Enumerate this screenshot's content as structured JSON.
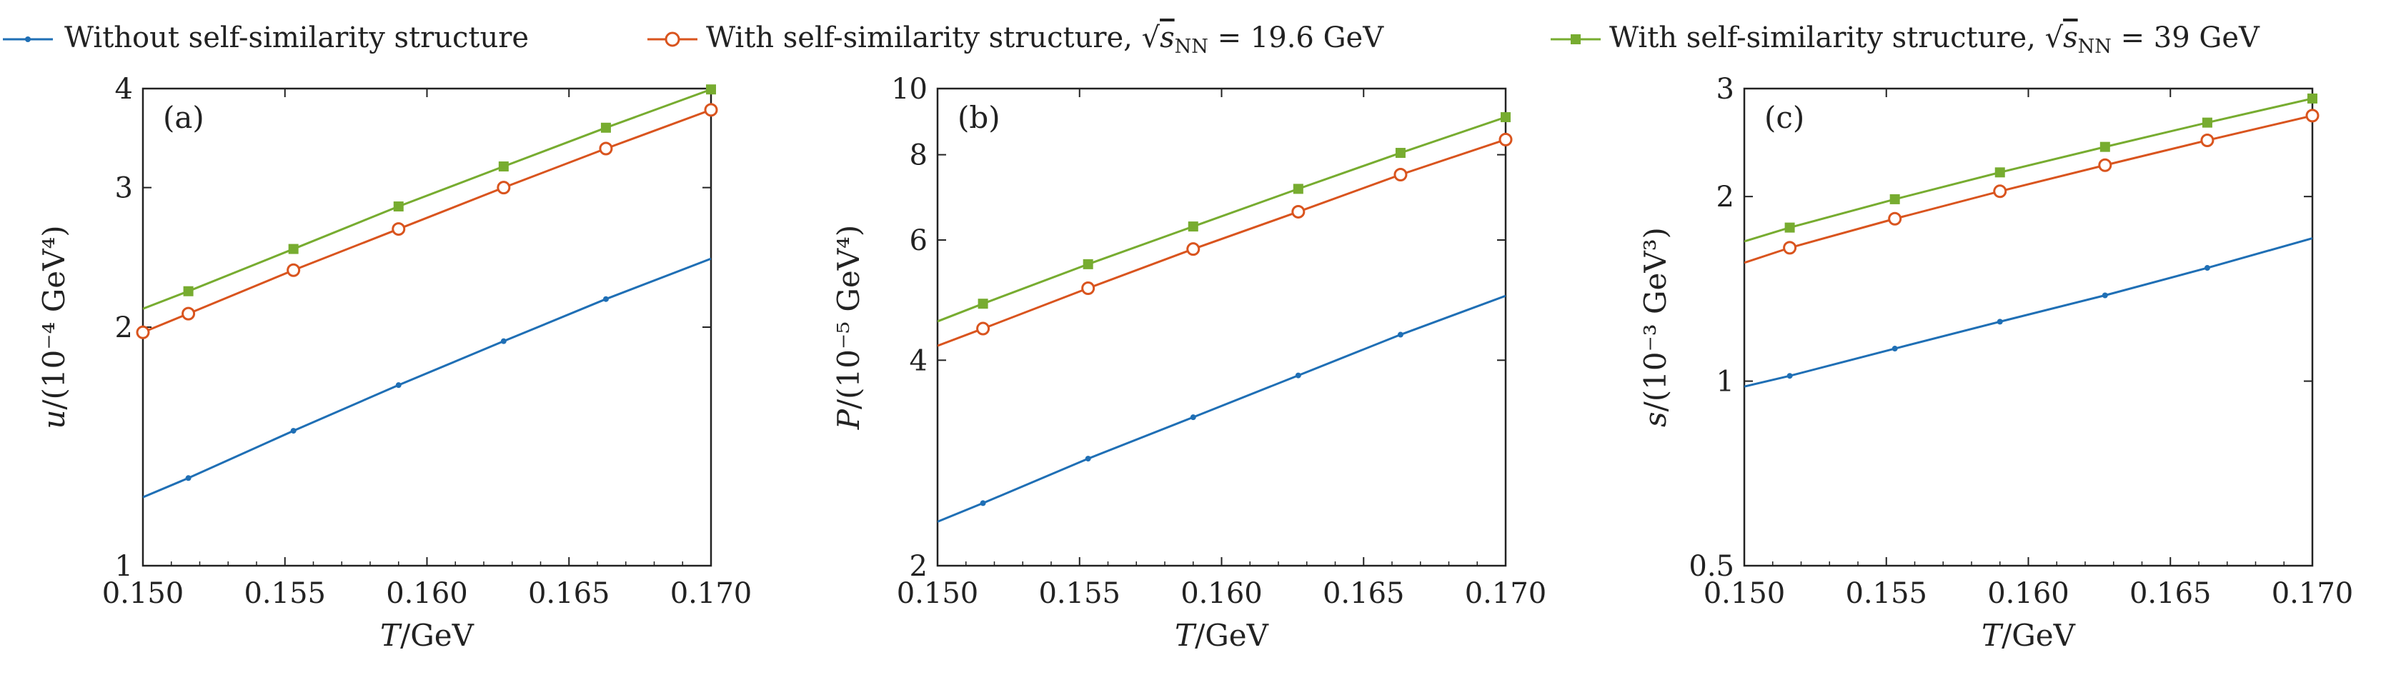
{
  "legend": [
    {
      "id": "s0",
      "label": "Without self-similarity structure",
      "color": "#1f6fb5",
      "marker": "dot"
    },
    {
      "id": "s1",
      "label": "With self-similarity structure, √s NN = 19.6 GeV",
      "label_main": "With self-similarity structure, ",
      "label_sym": "√",
      "label_var": "s",
      "label_sub": "NN",
      "label_tail": " = 19.6 GeV",
      "color": "#d9541e",
      "marker": "circle"
    },
    {
      "id": "s2",
      "label": "With self-similarity structure, √s NN = 39 GeV",
      "label_main": "With self-similarity structure, ",
      "label_sym": "√",
      "label_var": "s",
      "label_sub": "NN",
      "label_tail": " = 39 GeV",
      "color": "#77ac30",
      "marker": "square"
    }
  ],
  "chart_data": [
    {
      "type": "line",
      "panel_label": "(a)",
      "xlabel": "T/GeV",
      "ylabel": "u/(10⁻⁴ GeV⁴)",
      "yscale": "log",
      "xlim": [
        0.15,
        0.17
      ],
      "ylim": [
        1,
        4
      ],
      "xticks": [
        0.15,
        0.155,
        0.16,
        0.165,
        0.17
      ],
      "xtick_labels": [
        "0.150",
        "0.155",
        "0.160",
        "0.165",
        "0.170"
      ],
      "yticks": [
        1,
        2,
        3,
        4
      ],
      "ytick_labels": [
        "1",
        "2",
        "3",
        "4"
      ],
      "series": [
        {
          "x": [
            0.15,
            0.1516,
            0.1553,
            0.159,
            0.1627,
            0.1663,
            0.17
          ],
          "values": [
            1.22,
            1.29,
            1.48,
            1.69,
            1.92,
            2.17,
            2.44
          ],
          "markers": [
            1,
            2,
            3,
            4,
            5
          ]
        },
        {
          "x": [
            0.15,
            0.1516,
            0.1553,
            0.159,
            0.1627,
            0.1663,
            0.17
          ],
          "values": [
            1.97,
            2.08,
            2.36,
            2.66,
            3.0,
            3.36,
            3.76
          ],
          "markers": [
            0,
            1,
            2,
            3,
            4,
            5,
            6
          ]
        },
        {
          "x": [
            0.15,
            0.1516,
            0.1553,
            0.159,
            0.1627,
            0.1663,
            0.17
          ],
          "values": [
            2.11,
            2.22,
            2.51,
            2.84,
            3.19,
            3.57,
            3.99
          ],
          "markers": [
            1,
            2,
            3,
            4,
            5,
            6
          ]
        }
      ]
    },
    {
      "type": "line",
      "panel_label": "(b)",
      "xlabel": "T/GeV",
      "ylabel": "P/(10⁻⁵ GeV⁴)",
      "yscale": "log",
      "xlim": [
        0.15,
        0.17
      ],
      "ylim": [
        2,
        10
      ],
      "xticks": [
        0.15,
        0.155,
        0.16,
        0.165,
        0.17
      ],
      "xtick_labels": [
        "0.150",
        "0.155",
        "0.160",
        "0.165",
        "0.170"
      ],
      "yticks": [
        2,
        4,
        6,
        8,
        10
      ],
      "ytick_labels": [
        "2",
        "4",
        "6",
        "8",
        "10"
      ],
      "series": [
        {
          "x": [
            0.15,
            0.1516,
            0.1553,
            0.159,
            0.1627,
            0.1663,
            0.17
          ],
          "values": [
            2.32,
            2.47,
            2.87,
            3.3,
            3.8,
            4.36,
            4.97
          ],
          "markers": [
            1,
            2,
            3,
            4,
            5
          ]
        },
        {
          "x": [
            0.15,
            0.1516,
            0.1553,
            0.159,
            0.1627,
            0.1663,
            0.17
          ],
          "values": [
            4.2,
            4.45,
            5.1,
            5.82,
            6.6,
            7.48,
            8.42
          ],
          "markers": [
            1,
            2,
            3,
            4,
            5,
            6
          ]
        },
        {
          "x": [
            0.15,
            0.1516,
            0.1553,
            0.159,
            0.1627,
            0.1663,
            0.17
          ],
          "values": [
            4.56,
            4.84,
            5.53,
            6.28,
            7.13,
            8.05,
            9.08
          ],
          "markers": [
            1,
            2,
            3,
            4,
            5,
            6
          ]
        }
      ]
    },
    {
      "type": "line",
      "panel_label": "(c)",
      "xlabel": "T/GeV",
      "ylabel": "s/(10⁻³ GeV³)",
      "yscale": "log",
      "xlim": [
        0.15,
        0.17
      ],
      "ylim": [
        0.5,
        3
      ],
      "xticks": [
        0.15,
        0.155,
        0.16,
        0.165,
        0.17
      ],
      "xtick_labels": [
        "0.150",
        "0.155",
        "0.160",
        "0.165",
        "0.170"
      ],
      "yticks": [
        0.5,
        1,
        2,
        3
      ],
      "ytick_labels": [
        "0.5",
        "1",
        "2",
        "3"
      ],
      "series": [
        {
          "x": [
            0.15,
            0.1516,
            0.1553,
            0.159,
            0.1627,
            0.1663,
            0.17
          ],
          "values": [
            0.98,
            1.02,
            1.13,
            1.25,
            1.38,
            1.53,
            1.71
          ],
          "markers": [
            1,
            2,
            3,
            4,
            5
          ]
        },
        {
          "x": [
            0.15,
            0.1516,
            0.1553,
            0.159,
            0.1627,
            0.1663,
            0.17
          ],
          "values": [
            1.56,
            1.65,
            1.84,
            2.04,
            2.25,
            2.47,
            2.71
          ],
          "markers": [
            1,
            2,
            3,
            4,
            5,
            6
          ]
        },
        {
          "x": [
            0.15,
            0.1516,
            0.1553,
            0.159,
            0.1627,
            0.1663,
            0.17
          ],
          "values": [
            1.69,
            1.78,
            1.98,
            2.19,
            2.41,
            2.64,
            2.89
          ],
          "markers": [
            1,
            2,
            3,
            4,
            5,
            6
          ]
        }
      ]
    }
  ]
}
